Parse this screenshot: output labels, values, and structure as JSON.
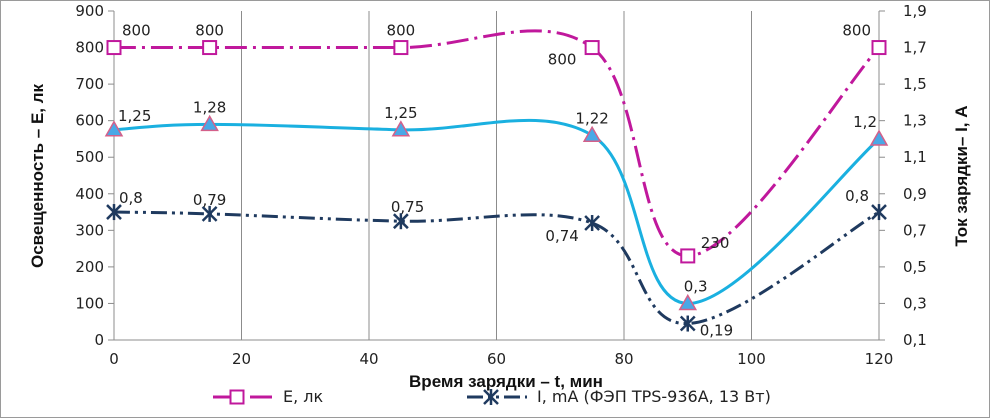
{
  "chart_data": {
    "type": "line",
    "x": [
      0,
      15,
      45,
      75,
      90,
      120
    ],
    "xlabel": "Время зарядки – t, мин",
    "xlim": [
      0,
      120
    ],
    "xticks": [
      0,
      20,
      40,
      60,
      80,
      100,
      120
    ],
    "ylabel_left": "Освещенность – Е, лк",
    "ylim_left": [
      0,
      900
    ],
    "yticks_left": [
      0,
      100,
      200,
      300,
      400,
      500,
      600,
      700,
      800,
      900
    ],
    "ylabel_right": "Ток зарядки– I, А",
    "ylim_right": [
      0.1,
      1.9
    ],
    "yticks_right": [
      "0,1",
      "0,3",
      "0,5",
      "0,7",
      "0,9",
      "1,1",
      "1,3",
      "1,5",
      "1,7",
      "1,9"
    ],
    "grid": "vertical",
    "legend_position": "bottom",
    "series": [
      {
        "name": "Е, лк",
        "axis": "left",
        "color": "#c0189c",
        "style": "dash-dot",
        "marker": "square",
        "values": [
          800,
          800,
          800,
          800,
          230,
          800
        ],
        "labels": [
          "800",
          "800",
          "800",
          "800",
          "230",
          "800"
        ]
      },
      {
        "name": "I, mA (ФЭП TPS-936A, 13 Вт)",
        "axis": "right",
        "color": "#1f3a5f",
        "style": "dash-dot-dot",
        "marker": "star",
        "values": [
          0.8,
          0.79,
          0.75,
          0.74,
          0.19,
          0.8
        ],
        "labels": [
          "0,8",
          "0,79",
          "0,75",
          "0,74",
          "0,19",
          "0,8"
        ]
      },
      {
        "name": "",
        "axis": "right",
        "color": "#1ab0e0",
        "style": "solid",
        "marker": "triangle",
        "values": [
          1.25,
          1.28,
          1.25,
          1.22,
          0.3,
          1.2
        ],
        "labels": [
          "1,25",
          "1,28",
          "1,25",
          "1,22",
          "0,3",
          "1,2"
        ]
      }
    ]
  }
}
